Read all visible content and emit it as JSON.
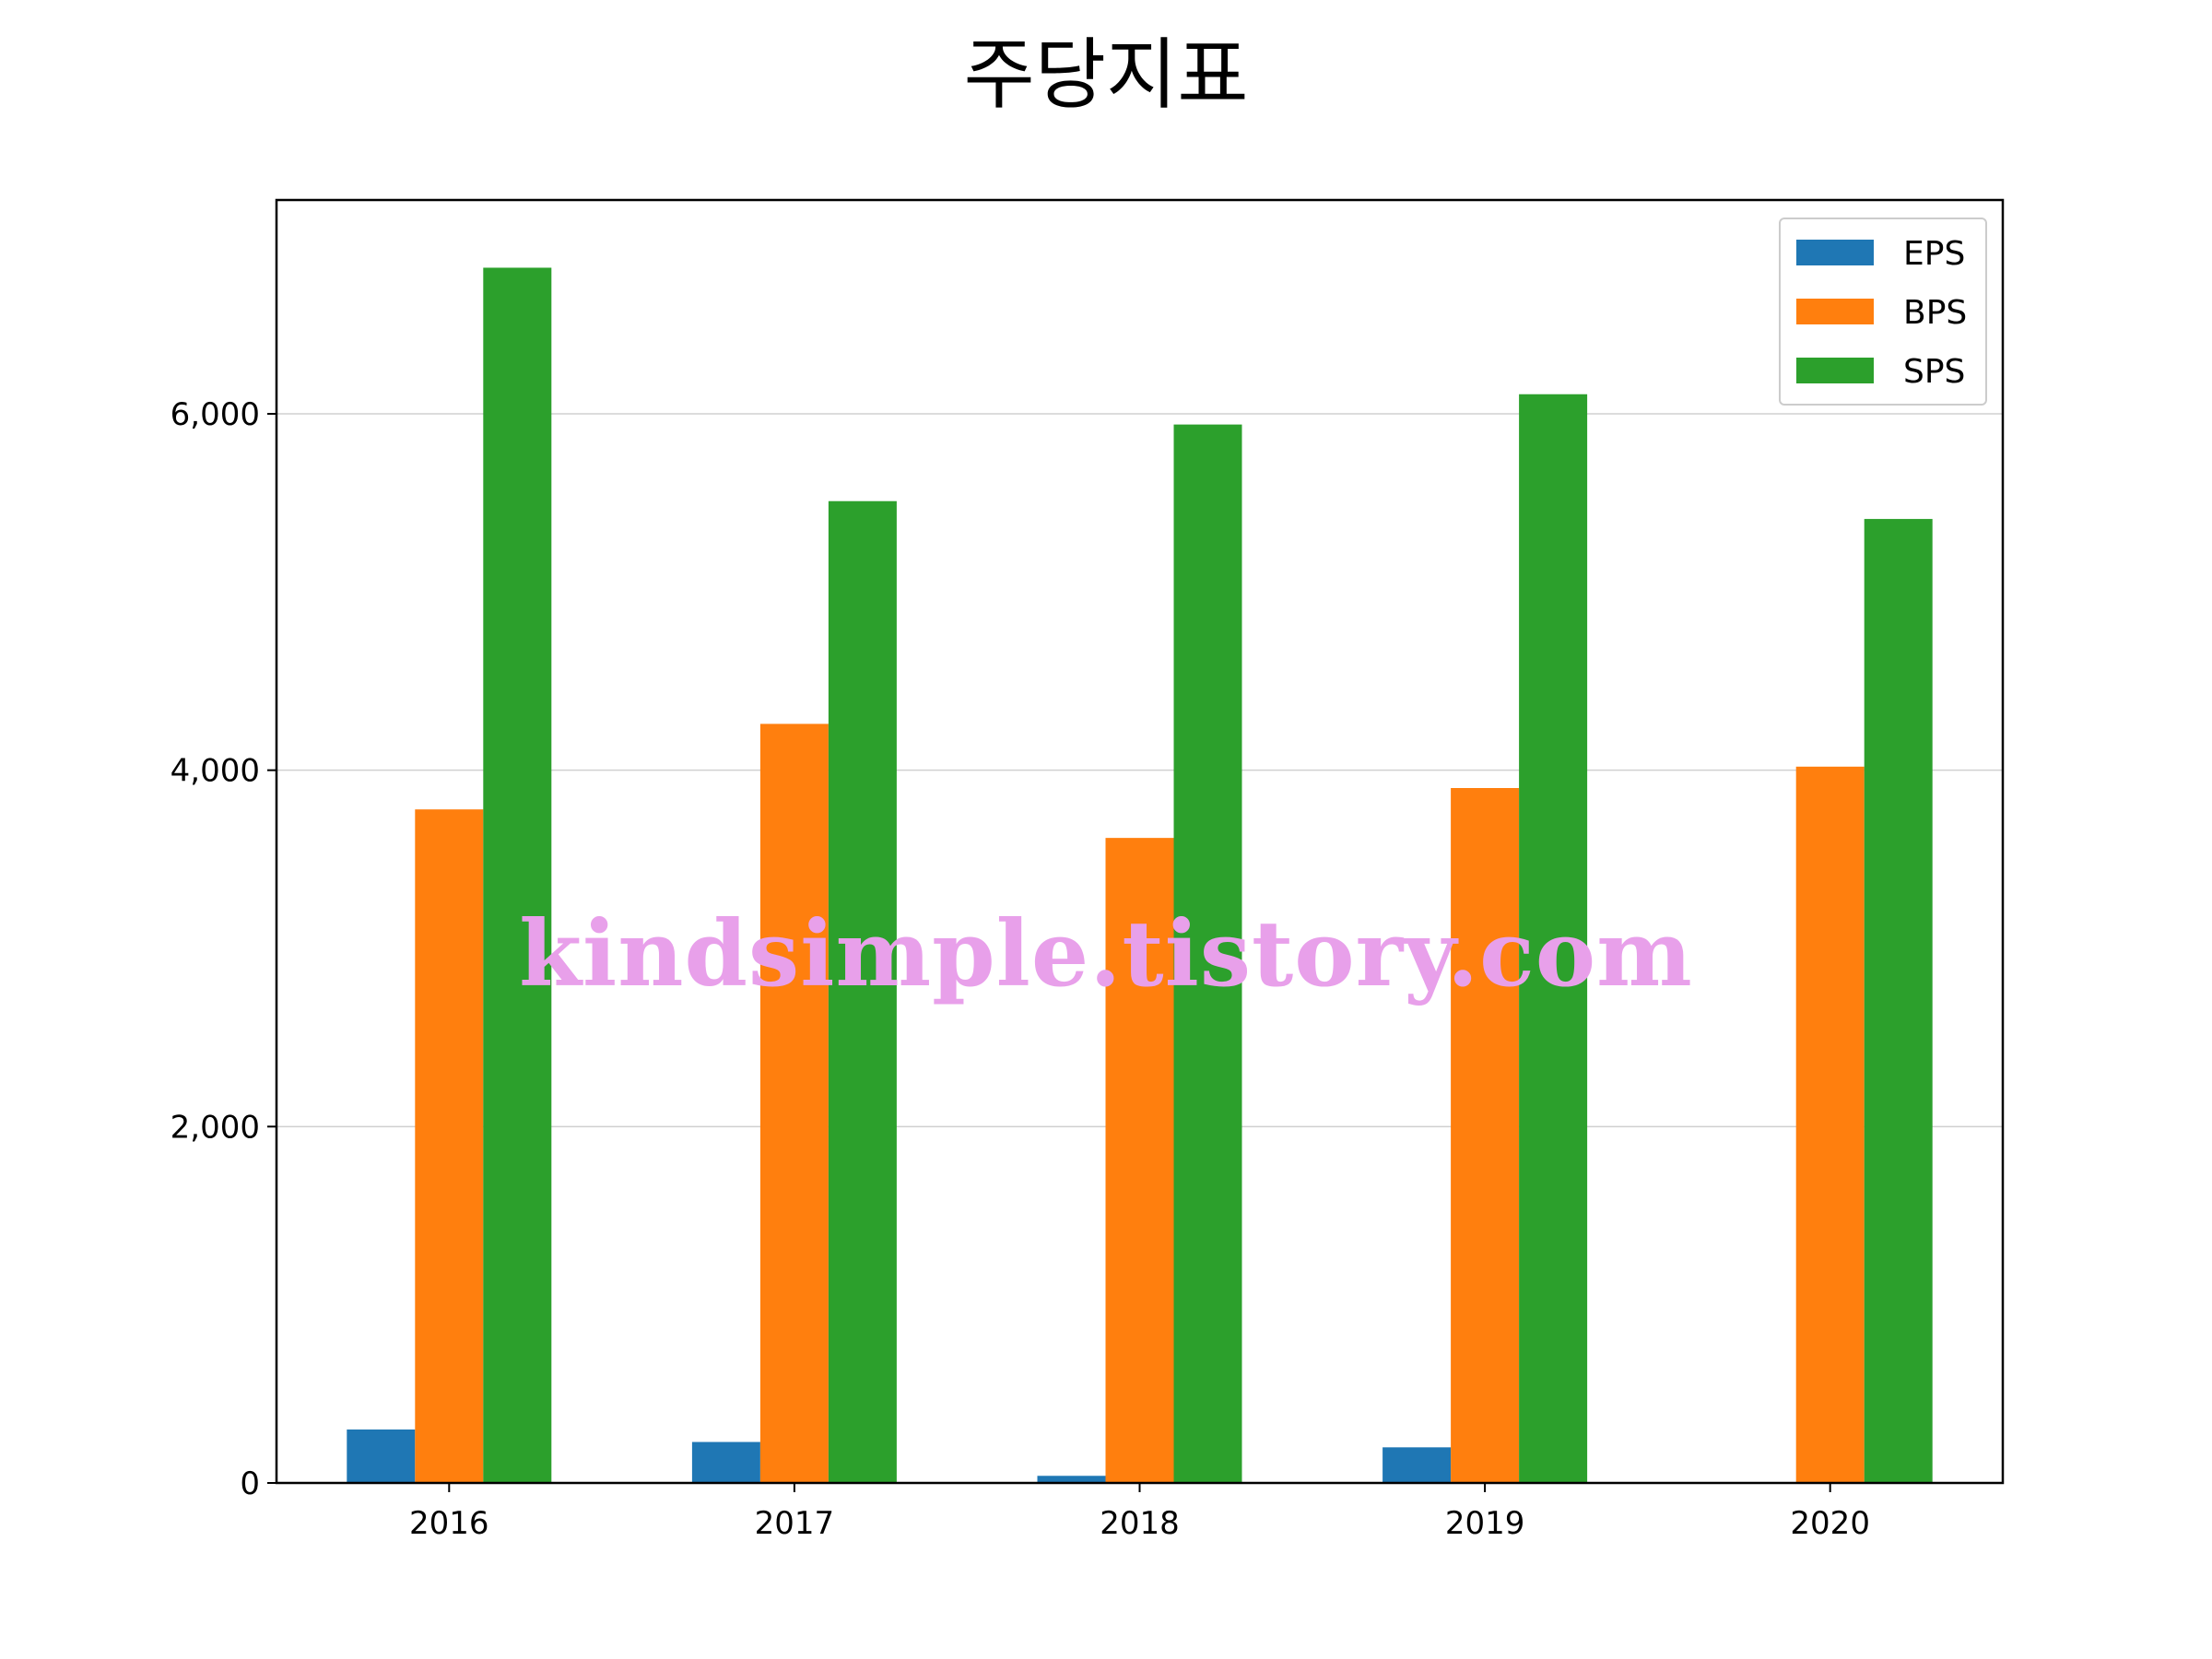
{
  "chart_data": {
    "type": "bar",
    "title": "주당지표",
    "xlabel": "",
    "ylabel": "",
    "categories": [
      "2016",
      "2017",
      "2018",
      "2019",
      "2020"
    ],
    "series": [
      {
        "name": "EPS",
        "values": [
          300,
          230,
          40,
          200,
          0
        ]
      },
      {
        "name": "BPS",
        "values": [
          3780,
          4260,
          3620,
          3900,
          4020
        ]
      },
      {
        "name": "SPS",
        "values": [
          6820,
          5510,
          5940,
          6110,
          5410
        ]
      }
    ],
    "ylim": [
      0,
      7200
    ],
    "yticks": [
      0,
      2000,
      4000,
      6000
    ],
    "ytick_labels": [
      "0",
      "2,000",
      "4,000",
      "6,000"
    ],
    "grid": "horizontal",
    "legend_position": "top-right",
    "colors": [
      "#1f77b4",
      "#ff7f0e",
      "#2ca02c"
    ],
    "watermark": "kindsimple.tistory.com"
  }
}
